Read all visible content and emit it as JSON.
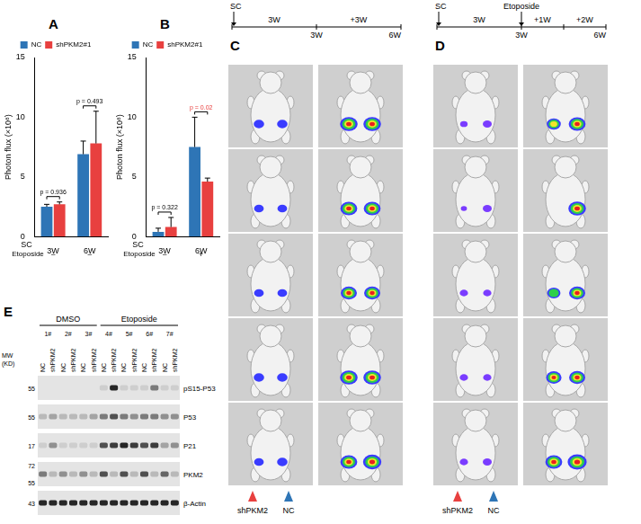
{
  "chart_data": [
    {
      "type": "bar",
      "panel": "A",
      "categories": [
        "3W",
        "6W"
      ],
      "x_label": "SC",
      "y_label": "Photon flux (×10⁸)",
      "ylim": [
        0,
        15
      ],
      "yticks": [
        0,
        5,
        10,
        15
      ],
      "grid": false,
      "legend": "top",
      "series": [
        {
          "name": "NC",
          "color": "#2e75b6",
          "values": [
            2.5,
            6.9
          ],
          "errors": [
            0.2,
            1.1
          ]
        },
        {
          "name": "shPKM2#1",
          "color": "#e8403f",
          "values": [
            2.7,
            7.8
          ],
          "errors": [
            0.2,
            2.7
          ]
        }
      ],
      "extra_rows": [
        {
          "label": "Etoposide",
          "values": [
            "−",
            "−"
          ]
        }
      ],
      "annotations": [
        {
          "text": "p = 0.936",
          "category": "3W",
          "color": "#000000"
        },
        {
          "text": "p = 0.493",
          "category": "6W",
          "color": "#000000"
        }
      ]
    },
    {
      "type": "bar",
      "panel": "B",
      "categories": [
        "3W",
        "6W"
      ],
      "x_label": "SC",
      "y_label": "Photon flux (×10⁸)",
      "ylim": [
        0,
        15
      ],
      "yticks": [
        0,
        5,
        10,
        15
      ],
      "grid": false,
      "legend": "top",
      "series": [
        {
          "name": "NC",
          "color": "#2e75b6",
          "values": [
            0.4,
            7.5
          ],
          "errors": [
            0.3,
            2.5
          ]
        },
        {
          "name": "shPKM2#1",
          "color": "#e8403f",
          "values": [
            0.8,
            4.6
          ],
          "errors": [
            0.8,
            0.3
          ]
        }
      ],
      "extra_rows": [
        {
          "label": "Etoposide",
          "values": [
            "−",
            "+"
          ]
        }
      ],
      "annotations": [
        {
          "text": "p = 0.322",
          "category": "3W",
          "color": "#000000"
        },
        {
          "text": "p = 0.02",
          "category": "6W",
          "color": "#e8403f"
        }
      ]
    }
  ],
  "panels": {
    "C": {
      "letter": "C",
      "start": "SC",
      "segments": [
        "3W",
        "+3W"
      ],
      "marks": [
        "3W",
        "6W"
      ],
      "sides": [
        {
          "label": "shPKM2",
          "color": "#e8403f"
        },
        {
          "label": "NC",
          "color": "#2e75b6"
        }
      ],
      "mice": [
        {
          "before": [
            0.35,
            0.35
          ],
          "after": [
            0.85,
            0.85
          ]
        },
        {
          "before": [
            0.3,
            0.3
          ],
          "after": [
            0.8,
            0.8
          ]
        },
        {
          "before": [
            0.3,
            0.3
          ],
          "after": [
            0.75,
            0.75
          ]
        },
        {
          "before": [
            0.35,
            0.35
          ],
          "after": [
            0.85,
            0.85
          ]
        },
        {
          "before": [
            0.3,
            0.35
          ],
          "after": [
            0.8,
            0.9
          ]
        }
      ]
    },
    "D": {
      "letter": "D",
      "start": "SC",
      "event": "Etoposide",
      "segments": [
        "3W",
        "+1W",
        "+2W"
      ],
      "marks": [
        "3W",
        "6W"
      ],
      "sides": [
        {
          "label": "shPKM2",
          "color": "#e8403f"
        },
        {
          "label": "NC",
          "color": "#2e75b6"
        }
      ],
      "mice": [
        {
          "before": [
            0.15,
            0.25
          ],
          "after": [
            0.6,
            0.8
          ]
        },
        {
          "before": [
            0.05,
            0.25
          ],
          "after": [
            0,
            0.85
          ]
        },
        {
          "before": [
            0.2,
            0.2
          ],
          "after": [
            0.55,
            0.75
          ]
        },
        {
          "before": [
            0.2,
            0.2
          ],
          "after": [
            0.7,
            0.75
          ]
        },
        {
          "before": [
            0.2,
            0.25
          ],
          "after": [
            0.8,
            0.95
          ]
        }
      ]
    },
    "E": {
      "letter": "E",
      "mw_label": [
        "MW",
        "(KD)"
      ],
      "lanes": [
        "NC",
        "shPKM2"
      ],
      "groups": [
        {
          "label": "DMSO",
          "samples": [
            "1#",
            "2#",
            "3#"
          ]
        },
        {
          "label": "Etoposide",
          "samples": [
            "4#",
            "5#",
            "6#",
            "7#"
          ]
        }
      ],
      "blots": [
        {
          "label": "pS15-P53",
          "mw": [
            "55"
          ],
          "intensity": [
            0,
            0,
            0,
            0,
            0,
            0,
            0.1,
            0.9,
            0.1,
            0.1,
            0.1,
            0.5,
            0.1,
            0.1
          ]
        },
        {
          "label": "P53",
          "mw": [
            "55"
          ],
          "intensity": [
            0.2,
            0.3,
            0.2,
            0.2,
            0.2,
            0.3,
            0.5,
            0.7,
            0.5,
            0.4,
            0.5,
            0.5,
            0.4,
            0.4
          ]
        },
        {
          "label": "P21",
          "mw": [
            "17"
          ],
          "intensity": [
            0.1,
            0.4,
            0.1,
            0.1,
            0.1,
            0.1,
            0.7,
            0.8,
            0.9,
            0.8,
            0.7,
            0.8,
            0.3,
            0.4
          ]
        },
        {
          "label": "PKM2",
          "mw": [
            "72",
            "55"
          ],
          "intensity": [
            0.5,
            0.2,
            0.4,
            0.2,
            0.4,
            0.2,
            0.7,
            0.2,
            0.7,
            0.2,
            0.7,
            0.2,
            0.6,
            0.2
          ]
        },
        {
          "label": "β-Actin",
          "mw": [
            "43"
          ],
          "intensity": [
            0.9,
            0.9,
            0.9,
            0.9,
            0.9,
            0.9,
            0.9,
            0.9,
            0.9,
            0.9,
            0.9,
            0.9,
            0.9,
            0.9
          ]
        }
      ]
    }
  }
}
